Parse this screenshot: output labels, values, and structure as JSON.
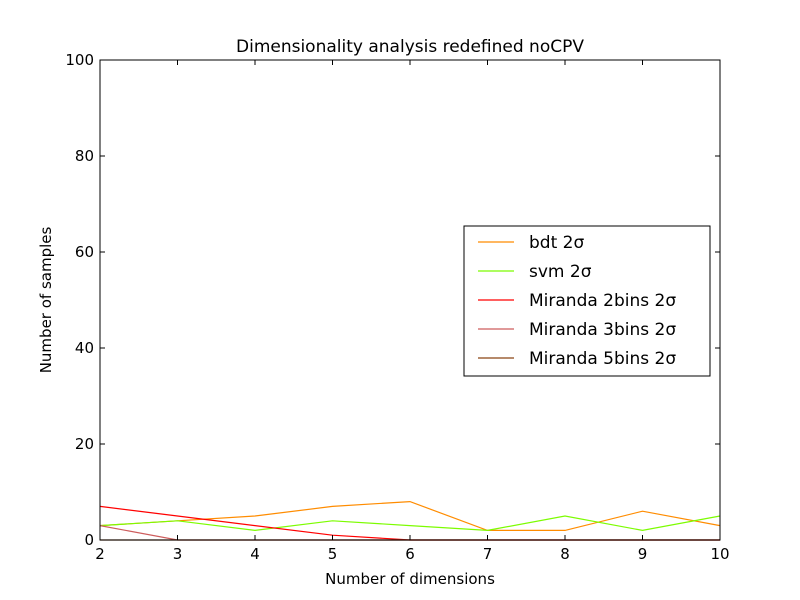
{
  "chart_data": {
    "type": "line",
    "title": "Dimensionality analysis redefined noCPV",
    "xlabel": "Number of dimensions",
    "ylabel": "Number of samples",
    "xlim": [
      2,
      10
    ],
    "ylim": [
      0,
      100
    ],
    "xticks": [
      "2",
      "3",
      "4",
      "5",
      "6",
      "7",
      "8",
      "9",
      "10"
    ],
    "yticks": [
      "0",
      "20",
      "40",
      "60",
      "80",
      "100"
    ],
    "grid": false,
    "legend_position": "center-right",
    "x": [
      2,
      3,
      4,
      5,
      6,
      7,
      8,
      9,
      10
    ],
    "series": [
      {
        "name": "bdt 2σ",
        "color": "#ff8c00",
        "values": [
          3,
          4,
          5,
          7,
          8,
          2,
          2,
          6,
          3
        ]
      },
      {
        "name": "svm 2σ",
        "color": "#7cfc00",
        "values": [
          3,
          4,
          2,
          4,
          3,
          2,
          5,
          2,
          5
        ]
      },
      {
        "name": "Miranda 2bins 2σ",
        "color": "#ff0000",
        "values": [
          7,
          5,
          3,
          1,
          0,
          0,
          0,
          0,
          0
        ]
      },
      {
        "name": "Miranda 3bins 2σ",
        "color": "#cd5c5c",
        "values": [
          3,
          0,
          0,
          0,
          0,
          0,
          0,
          0,
          0
        ]
      },
      {
        "name": "Miranda 5bins 2σ",
        "color": "#8b4513",
        "values": [
          0,
          0,
          0,
          0,
          0,
          0,
          0,
          0,
          0
        ]
      }
    ]
  }
}
